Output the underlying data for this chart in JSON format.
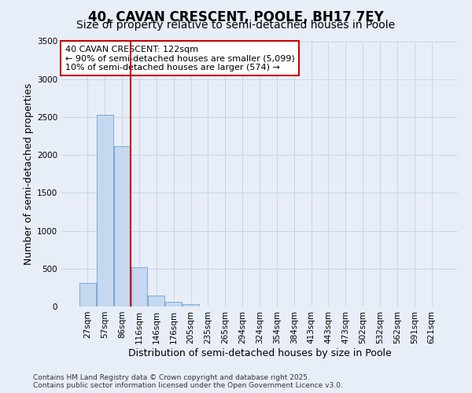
{
  "title": "40, CAVAN CRESCENT, POOLE, BH17 7EY",
  "subtitle": "Size of property relative to semi-detached houses in Poole",
  "xlabel": "Distribution of semi-detached houses by size in Poole",
  "ylabel": "Number of semi-detached properties",
  "categories": [
    "27sqm",
    "57sqm",
    "86sqm",
    "116sqm",
    "146sqm",
    "176sqm",
    "205sqm",
    "235sqm",
    "265sqm",
    "294sqm",
    "324sqm",
    "354sqm",
    "384sqm",
    "413sqm",
    "443sqm",
    "473sqm",
    "502sqm",
    "532sqm",
    "562sqm",
    "591sqm",
    "621sqm"
  ],
  "values": [
    310,
    2535,
    2120,
    520,
    150,
    65,
    30,
    5,
    0,
    0,
    0,
    0,
    0,
    0,
    0,
    0,
    0,
    0,
    0,
    0,
    0
  ],
  "bar_color": "#c5d8f0",
  "bar_edgecolor": "#7aaad4",
  "vline_index": 3,
  "vline_color": "#cc0000",
  "annotation_text": "40 CAVAN CRESCENT: 122sqm\n← 90% of semi-detached houses are smaller (5,099)\n10% of semi-detached houses are larger (574) →",
  "annotation_box_facecolor": "#ffffff",
  "annotation_box_edgecolor": "#cc0000",
  "ylim": [
    0,
    3500
  ],
  "yticks": [
    0,
    500,
    1000,
    1500,
    2000,
    2500,
    3000,
    3500
  ],
  "grid_color": "#c8d4e8",
  "background_color": "#e8eef8",
  "footer": "Contains HM Land Registry data © Crown copyright and database right 2025.\nContains public sector information licensed under the Open Government Licence v3.0.",
  "title_fontsize": 12,
  "subtitle_fontsize": 10,
  "annotation_fontsize": 8,
  "axis_label_fontsize": 9,
  "tick_fontsize": 7.5,
  "footer_fontsize": 6.5
}
